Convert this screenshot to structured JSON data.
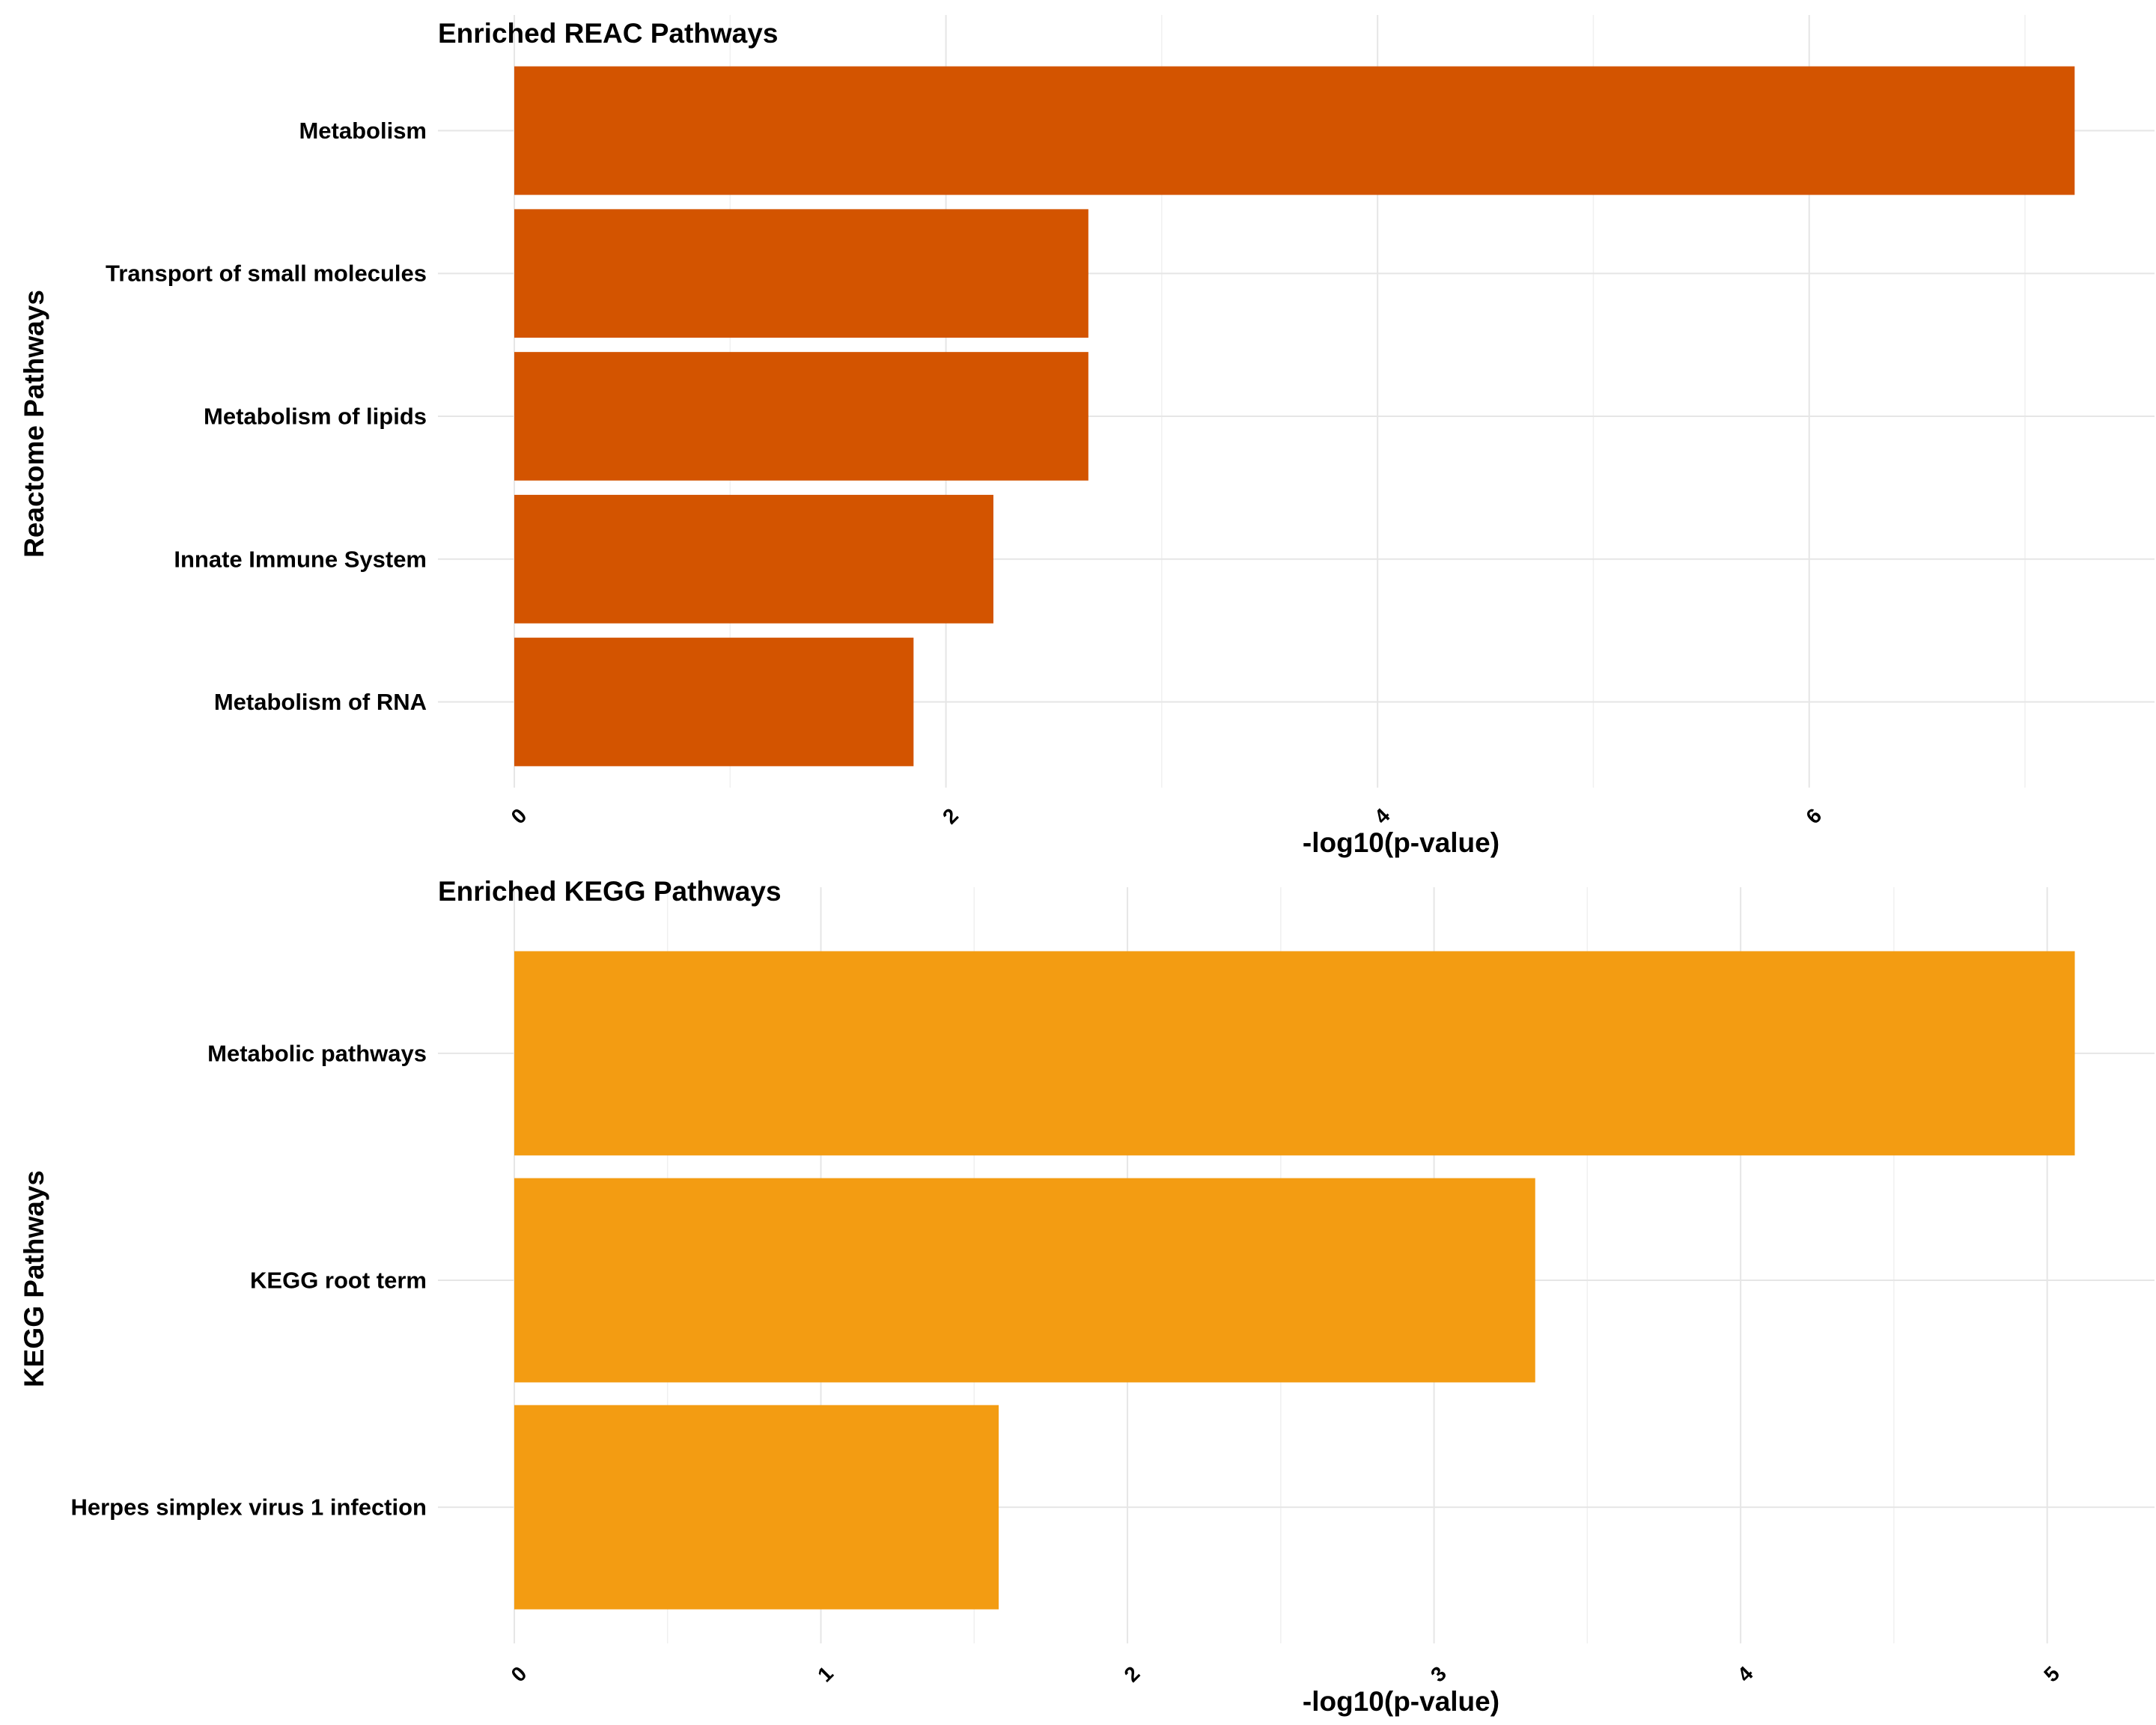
{
  "chart_data": [
    {
      "type": "bar",
      "orientation": "horizontal",
      "title": "Enriched REAC Pathways",
      "xlabel": "-log10(p-value)",
      "ylabel": "Reactome Pathways",
      "categories": [
        "Metabolism",
        "Transport of small molecules",
        "Metabolism of lipids",
        "Innate Immune System",
        "Metabolism of RNA"
      ],
      "values": [
        7.23,
        2.66,
        2.66,
        2.22,
        1.85
      ],
      "xlim": [
        0,
        7.6
      ],
      "xticks": [
        "0",
        "2",
        "4",
        "6"
      ],
      "xtick_values": [
        0,
        2,
        4,
        6
      ],
      "grid": true,
      "bar_color": "#D35400"
    },
    {
      "type": "bar",
      "orientation": "horizontal",
      "title": "Enriched KEGG Pathways",
      "xlabel": "-log10(p-value)",
      "ylabel": "KEGG Pathways",
      "categories": [
        "Metabolic pathways",
        "KEGG root term",
        "Herpes simplex virus 1 infection"
      ],
      "values": [
        5.09,
        3.33,
        1.58
      ],
      "xlim": [
        0,
        5.35
      ],
      "xticks": [
        "0",
        "1",
        "2",
        "3",
        "4",
        "5"
      ],
      "xtick_values": [
        0,
        1,
        2,
        3,
        4,
        5
      ],
      "grid": true,
      "bar_color": "#F39C12"
    }
  ]
}
